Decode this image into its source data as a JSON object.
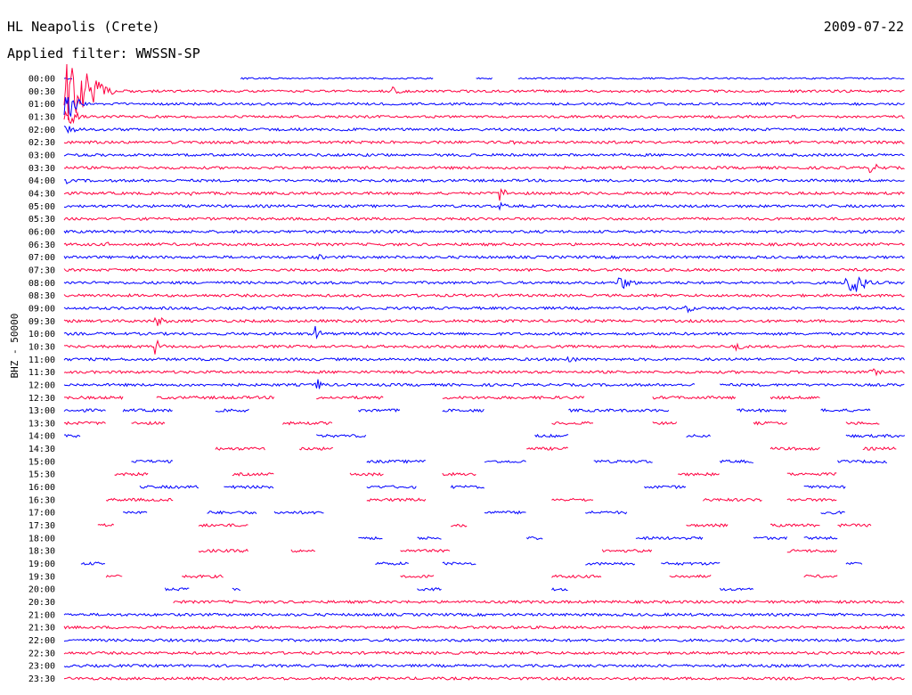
{
  "header": {
    "station": "HL Neapolis (Crete)",
    "date": "2009-07-22",
    "filter": "Applied filter: WWSSN-SP"
  },
  "chart_data": {
    "type": "line",
    "title": "HL Neapolis (Crete)",
    "subtitle": "Applied filter: WWSSN-SP",
    "date": "2009-07-22",
    "ylabel": "BHZ - 50000",
    "xlabel": "",
    "trace_colors": [
      "#0000ff",
      "#ff0040"
    ],
    "rows": [
      {
        "label": "00:00",
        "segments": [
          [
            0.0,
            0.01
          ],
          [
            0.21,
            0.44
          ],
          [
            0.49,
            0.51
          ],
          [
            0.54,
            1.0
          ]
        ],
        "noise": 0.9,
        "events": [
          {
            "t": 0.055,
            "amp": 10,
            "dur": 0.2
          }
        ]
      },
      {
        "label": "00:30",
        "segments": [
          [
            0.0,
            1.0
          ]
        ],
        "noise": 1.4,
        "events": [
          {
            "t": 0.0,
            "amp": 45,
            "dur": 0.08
          },
          {
            "t": 0.39,
            "amp": 5,
            "dur": 0.03
          }
        ]
      },
      {
        "label": "01:00",
        "segments": [
          [
            0.0,
            1.0
          ]
        ],
        "noise": 1.4,
        "events": [
          {
            "t": 0.0,
            "amp": 22,
            "dur": 0.04
          }
        ]
      },
      {
        "label": "01:30",
        "segments": [
          [
            0.0,
            1.0
          ]
        ],
        "noise": 1.4,
        "events": [
          {
            "t": 0.0,
            "amp": 12,
            "dur": 0.04
          }
        ]
      },
      {
        "label": "02:00",
        "segments": [
          [
            0.0,
            1.0
          ]
        ],
        "noise": 1.5,
        "events": [
          {
            "t": 0.0,
            "amp": 8,
            "dur": 0.03
          }
        ]
      },
      {
        "label": "02:30",
        "segments": [
          [
            0.0,
            1.0
          ]
        ],
        "noise": 1.5,
        "events": [
          {
            "t": 0.53,
            "amp": 4,
            "dur": 0.02
          }
        ]
      },
      {
        "label": "03:00",
        "segments": [
          [
            0.0,
            1.0
          ]
        ],
        "noise": 1.5,
        "events": []
      },
      {
        "label": "03:30",
        "segments": [
          [
            0.0,
            1.0
          ]
        ],
        "noise": 1.5,
        "events": [
          {
            "t": 0.96,
            "amp": 5,
            "dur": 0.05
          }
        ]
      },
      {
        "label": "04:00",
        "segments": [
          [
            0.0,
            1.0
          ]
        ],
        "noise": 1.5,
        "events": [
          {
            "t": 0.0,
            "amp": 5,
            "dur": 0.02
          }
        ]
      },
      {
        "label": "04:30",
        "segments": [
          [
            0.0,
            1.0
          ]
        ],
        "noise": 1.5,
        "events": [
          {
            "t": 0.52,
            "amp": 8,
            "dur": 0.02
          },
          {
            "t": 0.15,
            "amp": 3,
            "dur": 0.02
          }
        ]
      },
      {
        "label": "05:00",
        "segments": [
          [
            0.0,
            1.0
          ]
        ],
        "noise": 1.5,
        "events": [
          {
            "t": 0.52,
            "amp": 4,
            "dur": 0.02
          }
        ]
      },
      {
        "label": "05:30",
        "segments": [
          [
            0.0,
            1.0
          ]
        ],
        "noise": 1.5,
        "events": []
      },
      {
        "label": "06:00",
        "segments": [
          [
            0.0,
            1.0
          ]
        ],
        "noise": 1.5,
        "events": []
      },
      {
        "label": "06:30",
        "segments": [
          [
            0.0,
            1.0
          ]
        ],
        "noise": 1.5,
        "events": [
          {
            "t": 0.05,
            "amp": 3,
            "dur": 0.02
          }
        ]
      },
      {
        "label": "07:00",
        "segments": [
          [
            0.0,
            1.0
          ]
        ],
        "noise": 1.5,
        "events": [
          {
            "t": 0.3,
            "amp": 4,
            "dur": 0.03
          }
        ]
      },
      {
        "label": "07:30",
        "segments": [
          [
            0.0,
            1.0
          ]
        ],
        "noise": 1.5,
        "events": []
      },
      {
        "label": "08:00",
        "segments": [
          [
            0.0,
            1.0
          ]
        ],
        "noise": 1.5,
        "events": [
          {
            "t": 0.66,
            "amp": 9,
            "dur": 0.04
          },
          {
            "t": 0.93,
            "amp": 18,
            "dur": 0.05
          }
        ]
      },
      {
        "label": "08:30",
        "segments": [
          [
            0.0,
            1.0
          ]
        ],
        "noise": 1.5,
        "events": []
      },
      {
        "label": "09:00",
        "segments": [
          [
            0.0,
            1.0
          ]
        ],
        "noise": 1.5,
        "events": [
          {
            "t": 0.74,
            "amp": 5,
            "dur": 0.03
          }
        ]
      },
      {
        "label": "09:30",
        "segments": [
          [
            0.0,
            1.0
          ]
        ],
        "noise": 1.5,
        "events": [
          {
            "t": 0.11,
            "amp": 6,
            "dur": 0.03
          }
        ]
      },
      {
        "label": "10:00",
        "segments": [
          [
            0.0,
            1.0
          ]
        ],
        "noise": 1.5,
        "events": [
          {
            "t": 0.3,
            "amp": 8,
            "dur": 0.02
          }
        ]
      },
      {
        "label": "10:30",
        "segments": [
          [
            0.0,
            1.0
          ]
        ],
        "noise": 1.5,
        "events": [
          {
            "t": 0.11,
            "amp": 8,
            "dur": 0.02
          },
          {
            "t": 0.8,
            "amp": 6,
            "dur": 0.02
          }
        ]
      },
      {
        "label": "11:00",
        "segments": [
          [
            0.0,
            1.0
          ]
        ],
        "noise": 1.5,
        "events": [
          {
            "t": 0.6,
            "amp": 5,
            "dur": 0.03
          }
        ]
      },
      {
        "label": "11:30",
        "segments": [
          [
            0.0,
            1.0
          ]
        ],
        "noise": 1.5,
        "events": [
          {
            "t": 0.96,
            "amp": 5,
            "dur": 0.03
          }
        ]
      },
      {
        "label": "12:00",
        "segments": [
          [
            0.0,
            0.75
          ],
          [
            0.78,
            1.0
          ]
        ],
        "noise": 1.5,
        "events": [
          {
            "t": 0.3,
            "amp": 8,
            "dur": 0.02
          }
        ]
      },
      {
        "label": "12:30",
        "segments": [
          [
            0.0,
            0.07
          ],
          [
            0.11,
            0.25
          ],
          [
            0.3,
            0.38
          ],
          [
            0.45,
            0.62
          ],
          [
            0.7,
            0.8
          ],
          [
            0.84,
            0.9
          ]
        ],
        "noise": 1.6,
        "events": []
      },
      {
        "label": "13:00",
        "segments": [
          [
            0.0,
            0.05
          ],
          [
            0.07,
            0.13
          ],
          [
            0.18,
            0.22
          ],
          [
            0.35,
            0.4
          ],
          [
            0.45,
            0.5
          ],
          [
            0.6,
            0.72
          ],
          [
            0.8,
            0.86
          ],
          [
            0.9,
            0.96
          ]
        ],
        "noise": 1.6,
        "events": [
          {
            "t": 0.55,
            "amp": 8,
            "dur": 0.01
          }
        ]
      },
      {
        "label": "13:30",
        "segments": [
          [
            0.0,
            0.05
          ],
          [
            0.08,
            0.12
          ],
          [
            0.26,
            0.32
          ],
          [
            0.58,
            0.63
          ],
          [
            0.7,
            0.73
          ],
          [
            0.82,
            0.86
          ],
          [
            0.93,
            0.97
          ]
        ],
        "noise": 1.6,
        "events": []
      },
      {
        "label": "14:00",
        "segments": [
          [
            0.0,
            0.02
          ],
          [
            0.3,
            0.36
          ],
          [
            0.56,
            0.6
          ],
          [
            0.74,
            0.77
          ],
          [
            0.93,
            1.0
          ]
        ],
        "noise": 1.6,
        "events": [
          {
            "t": 0.7,
            "amp": 12,
            "dur": 0.01
          }
        ]
      },
      {
        "label": "14:30",
        "segments": [
          [
            0.18,
            0.24
          ],
          [
            0.28,
            0.32
          ],
          [
            0.55,
            0.6
          ],
          [
            0.84,
            0.9
          ],
          [
            0.95,
            0.99
          ]
        ],
        "noise": 1.6,
        "events": []
      },
      {
        "label": "15:00",
        "segments": [
          [
            0.08,
            0.13
          ],
          [
            0.36,
            0.43
          ],
          [
            0.5,
            0.55
          ],
          [
            0.63,
            0.7
          ],
          [
            0.78,
            0.82
          ],
          [
            0.92,
            0.98
          ]
        ],
        "noise": 1.6,
        "events": []
      },
      {
        "label": "15:30",
        "segments": [
          [
            0.06,
            0.1
          ],
          [
            0.2,
            0.25
          ],
          [
            0.34,
            0.38
          ],
          [
            0.45,
            0.49
          ],
          [
            0.73,
            0.78
          ],
          [
            0.86,
            0.92
          ]
        ],
        "noise": 1.6,
        "events": []
      },
      {
        "label": "16:00",
        "segments": [
          [
            0.09,
            0.16
          ],
          [
            0.19,
            0.25
          ],
          [
            0.36,
            0.42
          ],
          [
            0.46,
            0.5
          ],
          [
            0.69,
            0.74
          ],
          [
            0.88,
            0.93
          ]
        ],
        "noise": 1.6,
        "events": []
      },
      {
        "label": "16:30",
        "segments": [
          [
            0.05,
            0.13
          ],
          [
            0.36,
            0.43
          ],
          [
            0.58,
            0.63
          ],
          [
            0.76,
            0.83
          ],
          [
            0.86,
            0.92
          ]
        ],
        "noise": 1.6,
        "events": []
      },
      {
        "label": "17:00",
        "segments": [
          [
            0.07,
            0.1
          ],
          [
            0.17,
            0.23
          ],
          [
            0.25,
            0.31
          ],
          [
            0.5,
            0.55
          ],
          [
            0.62,
            0.67
          ],
          [
            0.9,
            0.93
          ]
        ],
        "noise": 1.6,
        "events": [
          {
            "t": 0.59,
            "amp": 10,
            "dur": 0.015
          }
        ]
      },
      {
        "label": "17:30",
        "segments": [
          [
            0.04,
            0.06
          ],
          [
            0.16,
            0.22
          ],
          [
            0.46,
            0.48
          ],
          [
            0.74,
            0.79
          ],
          [
            0.84,
            0.9
          ],
          [
            0.92,
            0.96
          ]
        ],
        "noise": 1.6,
        "events": []
      },
      {
        "label": "18:00",
        "segments": [
          [
            0.35,
            0.38
          ],
          [
            0.42,
            0.45
          ],
          [
            0.55,
            0.57
          ],
          [
            0.68,
            0.76
          ],
          [
            0.82,
            0.86
          ],
          [
            0.88,
            0.92
          ]
        ],
        "noise": 1.6,
        "events": []
      },
      {
        "label": "18:30",
        "segments": [
          [
            0.16,
            0.22
          ],
          [
            0.27,
            0.3
          ],
          [
            0.4,
            0.46
          ],
          [
            0.64,
            0.7
          ],
          [
            0.86,
            0.92
          ]
        ],
        "noise": 1.6,
        "events": []
      },
      {
        "label": "19:00",
        "segments": [
          [
            0.02,
            0.05
          ],
          [
            0.37,
            0.41
          ],
          [
            0.45,
            0.49
          ],
          [
            0.62,
            0.68
          ],
          [
            0.71,
            0.78
          ],
          [
            0.93,
            0.95
          ]
        ],
        "noise": 1.6,
        "events": []
      },
      {
        "label": "19:30",
        "segments": [
          [
            0.05,
            0.07
          ],
          [
            0.14,
            0.19
          ],
          [
            0.4,
            0.44
          ],
          [
            0.58,
            0.64
          ],
          [
            0.72,
            0.77
          ],
          [
            0.88,
            0.92
          ]
        ],
        "noise": 1.6,
        "events": []
      },
      {
        "label": "20:00",
        "segments": [
          [
            0.12,
            0.15
          ],
          [
            0.2,
            0.21
          ],
          [
            0.42,
            0.45
          ],
          [
            0.58,
            0.6
          ],
          [
            0.78,
            0.82
          ]
        ],
        "noise": 1.6,
        "events": []
      },
      {
        "label": "20:30",
        "segments": [
          [
            0.13,
            1.0
          ]
        ],
        "noise": 1.5,
        "events": []
      },
      {
        "label": "21:00",
        "segments": [
          [
            0.0,
            1.0
          ]
        ],
        "noise": 1.5,
        "events": []
      },
      {
        "label": "21:30",
        "segments": [
          [
            0.0,
            1.0
          ]
        ],
        "noise": 1.5,
        "events": []
      },
      {
        "label": "22:00",
        "segments": [
          [
            0.0,
            1.0
          ]
        ],
        "noise": 1.5,
        "events": []
      },
      {
        "label": "22:30",
        "segments": [
          [
            0.0,
            1.0
          ]
        ],
        "noise": 1.5,
        "events": []
      },
      {
        "label": "23:00",
        "segments": [
          [
            0.0,
            1.0
          ]
        ],
        "noise": 1.5,
        "events": []
      },
      {
        "label": "23:30",
        "segments": [
          [
            0.0,
            1.0
          ]
        ],
        "noise": 1.5,
        "events": []
      }
    ]
  }
}
